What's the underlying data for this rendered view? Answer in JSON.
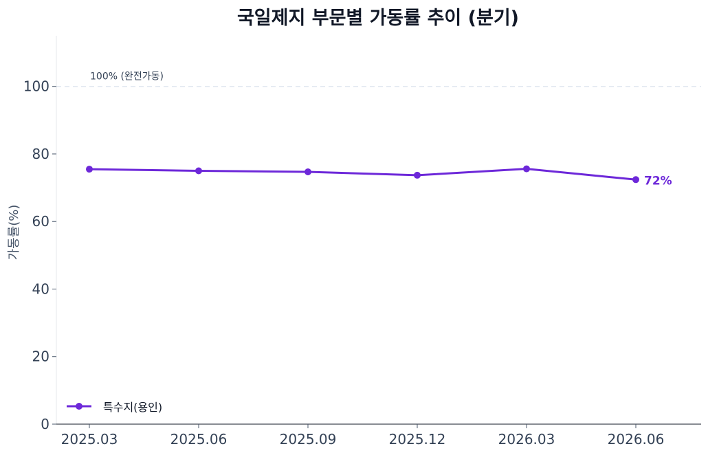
{
  "chart_data": {
    "type": "line",
    "title": "국일제지 부문별 가동률 추이 (분기)",
    "xlabel": "",
    "ylabel": "가동률(%)",
    "categories": [
      "2025.03",
      "2025.06",
      "2025.09",
      "2025.12",
      "2026.03",
      "2026.06"
    ],
    "series": [
      {
        "name": "특수지(용인)",
        "values": [
          75.5,
          75.0,
          74.7,
          73.7,
          75.6,
          72.4
        ],
        "color": "#6d28d9"
      }
    ],
    "ylim": [
      0,
      115
    ],
    "yticks": [
      "0",
      "20",
      "40",
      "60",
      "80",
      "100"
    ],
    "reference_line": {
      "value": 100,
      "label": "100% (완전가동)",
      "style": "dashed"
    },
    "end_label": "72%",
    "grid": false,
    "legend": {
      "position": "bottom-left",
      "entries": [
        "특수지(용인)"
      ]
    }
  }
}
